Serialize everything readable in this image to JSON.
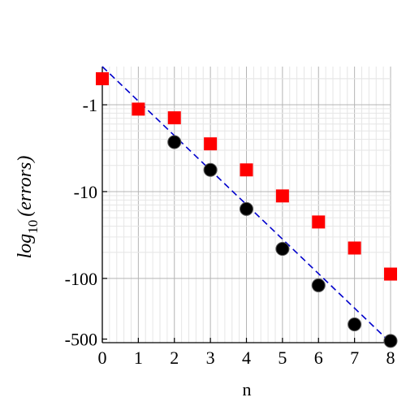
{
  "chart_data": {
    "type": "scatter",
    "title": "",
    "xlabel": "n",
    "ylabel": {
      "prefix": "log",
      "subscript": "10",
      "argument": "(errors)"
    },
    "xlim": [
      0,
      8
    ],
    "ylim_log10": [
      -2.74,
      0.44
    ],
    "x_ticks": [
      0,
      1,
      2,
      3,
      4,
      5,
      6,
      7,
      8
    ],
    "y_ticks": [
      {
        "value": -1,
        "label": "-1"
      },
      {
        "value": -10,
        "label": "-10"
      },
      {
        "value": -100,
        "label": "-100"
      },
      {
        "value": -500,
        "label": "-500"
      }
    ],
    "grid": true,
    "series": [
      {
        "marker": "square",
        "color": "#ff0000",
        "x": [
          0,
          1,
          2,
          3,
          4,
          5,
          6,
          7,
          8
        ],
        "log10_y": [
          0.3,
          -0.05,
          -0.15,
          -0.45,
          -0.75,
          -1.05,
          -1.35,
          -1.65,
          -1.95
        ]
      },
      {
        "marker": "circle",
        "color": "#000000",
        "x": [
          2,
          3,
          4,
          5,
          6,
          7,
          8
        ],
        "log10_y": [
          -0.43,
          -0.75,
          -1.2,
          -1.66,
          -2.08,
          -2.53,
          -2.72
        ]
      },
      {
        "marker": "dashed-line",
        "color": "#0000cc",
        "x": [
          0,
          8
        ],
        "log10_y": [
          0.44,
          -2.74
        ]
      }
    ]
  }
}
